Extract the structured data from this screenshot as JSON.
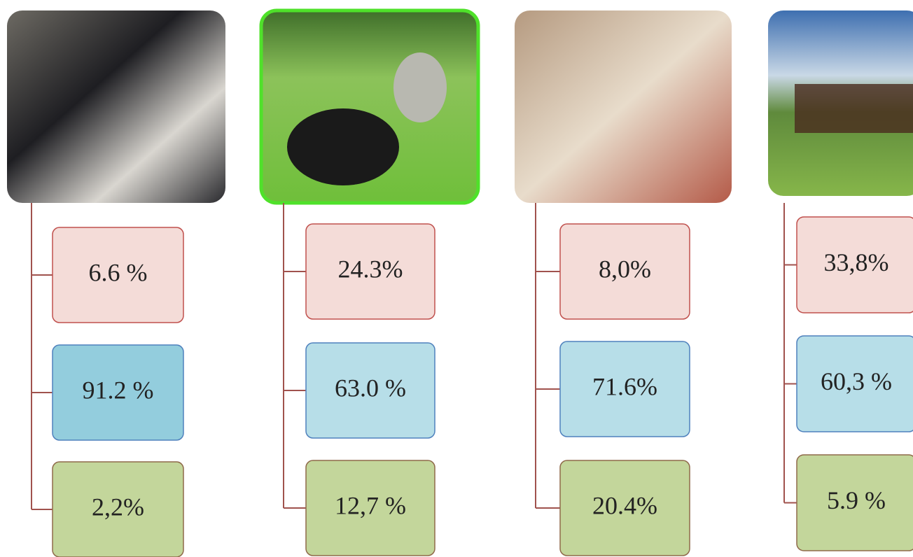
{
  "columns": [
    {
      "boxes": [
        "6.6 %",
        "91.2 %",
        "2,2%"
      ]
    },
    {
      "boxes": [
        "24.3%",
        "63.0 %",
        "12,7 %"
      ]
    },
    {
      "boxes": [
        "8,0%",
        "71.6%",
        "20.4%"
      ]
    },
    {
      "boxes": [
        "33,8%",
        "60,3 %",
        "5.9 %"
      ]
    }
  ]
}
